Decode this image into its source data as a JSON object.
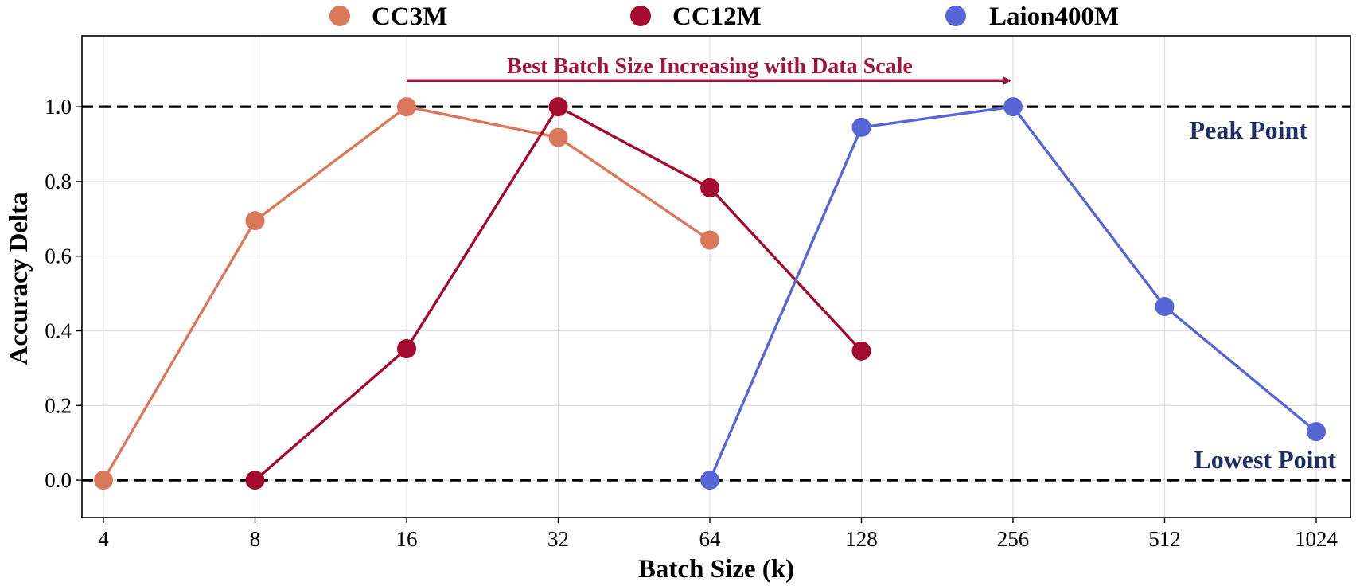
{
  "chart_data": {
    "type": "line",
    "xlabel": "Batch Size (k)",
    "ylabel": "Accuracy Delta",
    "x_scale": "log2",
    "x_ticks": [
      4,
      8,
      16,
      32,
      64,
      128,
      256,
      512,
      1024
    ],
    "x_tick_labels": [
      "4",
      "8",
      "16",
      "32",
      "64",
      "128",
      "256",
      "512",
      "1024"
    ],
    "ylim": [
      -0.1,
      1.19
    ],
    "y_ticks": [
      0.0,
      0.2,
      0.4,
      0.6,
      0.8,
      1.0
    ],
    "y_tick_labels": [
      "0.0",
      "0.2",
      "0.4",
      "0.6",
      "0.8",
      "1.0"
    ],
    "grid": true,
    "legend_position": "top-center, above plot",
    "series": [
      {
        "name": "CC3M",
        "color": "#d9785a",
        "x": [
          4,
          8,
          16,
          32,
          64
        ],
        "y": [
          0.0,
          0.695,
          1.0,
          0.918,
          0.643
        ]
      },
      {
        "name": "CC12M",
        "color": "#a50b2e",
        "x": [
          8,
          16,
          32,
          64,
          128
        ],
        "y": [
          0.0,
          0.352,
          1.0,
          0.783,
          0.346
        ]
      },
      {
        "name": "Laion400M",
        "color": "#5765d6",
        "x": [
          64,
          128,
          256,
          512,
          1024
        ],
        "y": [
          0.0,
          0.945,
          1.0,
          0.465,
          0.13
        ]
      }
    ],
    "reference_lines": [
      {
        "y": 1.0,
        "style": "dashed",
        "color": "#000000",
        "label": "Peak Point"
      },
      {
        "y": 0.0,
        "style": "dashed",
        "color": "#000000",
        "label": "Lowest Point"
      }
    ],
    "reference_label_color": "#1f2f66",
    "arrow_annotation": {
      "text": "Best Batch Size Increasing with Data Scale",
      "from_x": 16,
      "to_x": 256,
      "y": 1.07,
      "color": "#a0153e"
    }
  }
}
